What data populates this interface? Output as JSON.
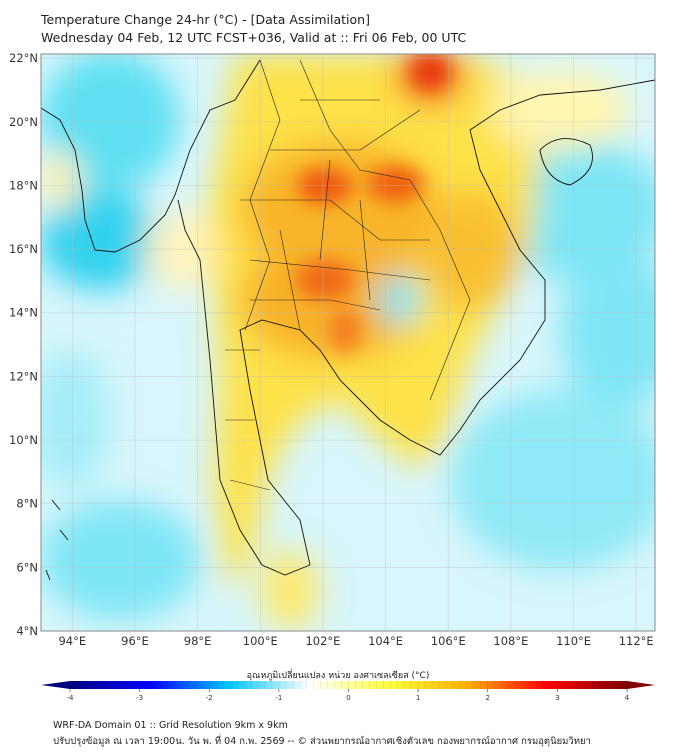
{
  "header": {
    "title": "Temperature Change 24-hr (°C) - [Data Assimilation]",
    "subtitle": "Wednesday 04 Feb, 12 UTC FCST+036, Valid at :: Fri 06 Feb, 00 UTC"
  },
  "map": {
    "lon_range": [
      93,
      112.6
    ],
    "lat_range": [
      4,
      22.13
    ],
    "lon_ticks": [
      {
        "v": 94,
        "label": "94°E"
      },
      {
        "v": 96,
        "label": "96°E"
      },
      {
        "v": 98,
        "label": "98°E"
      },
      {
        "v": 100,
        "label": "100°E"
      },
      {
        "v": 102,
        "label": "102°E"
      },
      {
        "v": 104,
        "label": "104°E"
      },
      {
        "v": 106,
        "label": "106°E"
      },
      {
        "v": 108,
        "label": "108°E"
      },
      {
        "v": 110,
        "label": "110°E"
      },
      {
        "v": 112,
        "label": "112°E"
      }
    ],
    "lat_ticks": [
      {
        "v": 22,
        "label": "22°N"
      },
      {
        "v": 20,
        "label": "20°N"
      },
      {
        "v": 18,
        "label": "18°N"
      },
      {
        "v": 16,
        "label": "16°N"
      },
      {
        "v": 14,
        "label": "14°N"
      },
      {
        "v": 12,
        "label": "12°N"
      },
      {
        "v": 10,
        "label": "10°N"
      },
      {
        "v": 8,
        "label": "8°N"
      },
      {
        "v": 6,
        "label": "6°N"
      },
      {
        "v": 4,
        "label": "4°N"
      }
    ]
  },
  "colorbar": {
    "label": "อุณหภูมิเปลี่ยนแปลง หน่วย องศาเซลเซียส (°C)",
    "range": [
      -4,
      4
    ],
    "ticks": [
      "-4",
      "-3",
      "-2",
      "-1",
      "0",
      "1",
      "2",
      "3",
      "4"
    ],
    "colors": [
      "#00007f",
      "#0000ff",
      "#00c8ff",
      "#ffffff",
      "#ffff40",
      "#ffb000",
      "#ff0000",
      "#7f0000"
    ]
  },
  "footer": {
    "line1": "WRF-DA Domain 01 :: Grid Resolution 9km x 9km",
    "line2": "ปรับปรุงข้อมูล ณ เวลา 19:00น. วัน พ. ที่ 04 ก.พ. 2569 -- © ส่วนพยากรณ์อากาศเชิงตัวเลข กองพยากรณ์อากาศ กรมอุตุนิยมวิทยา"
  }
}
